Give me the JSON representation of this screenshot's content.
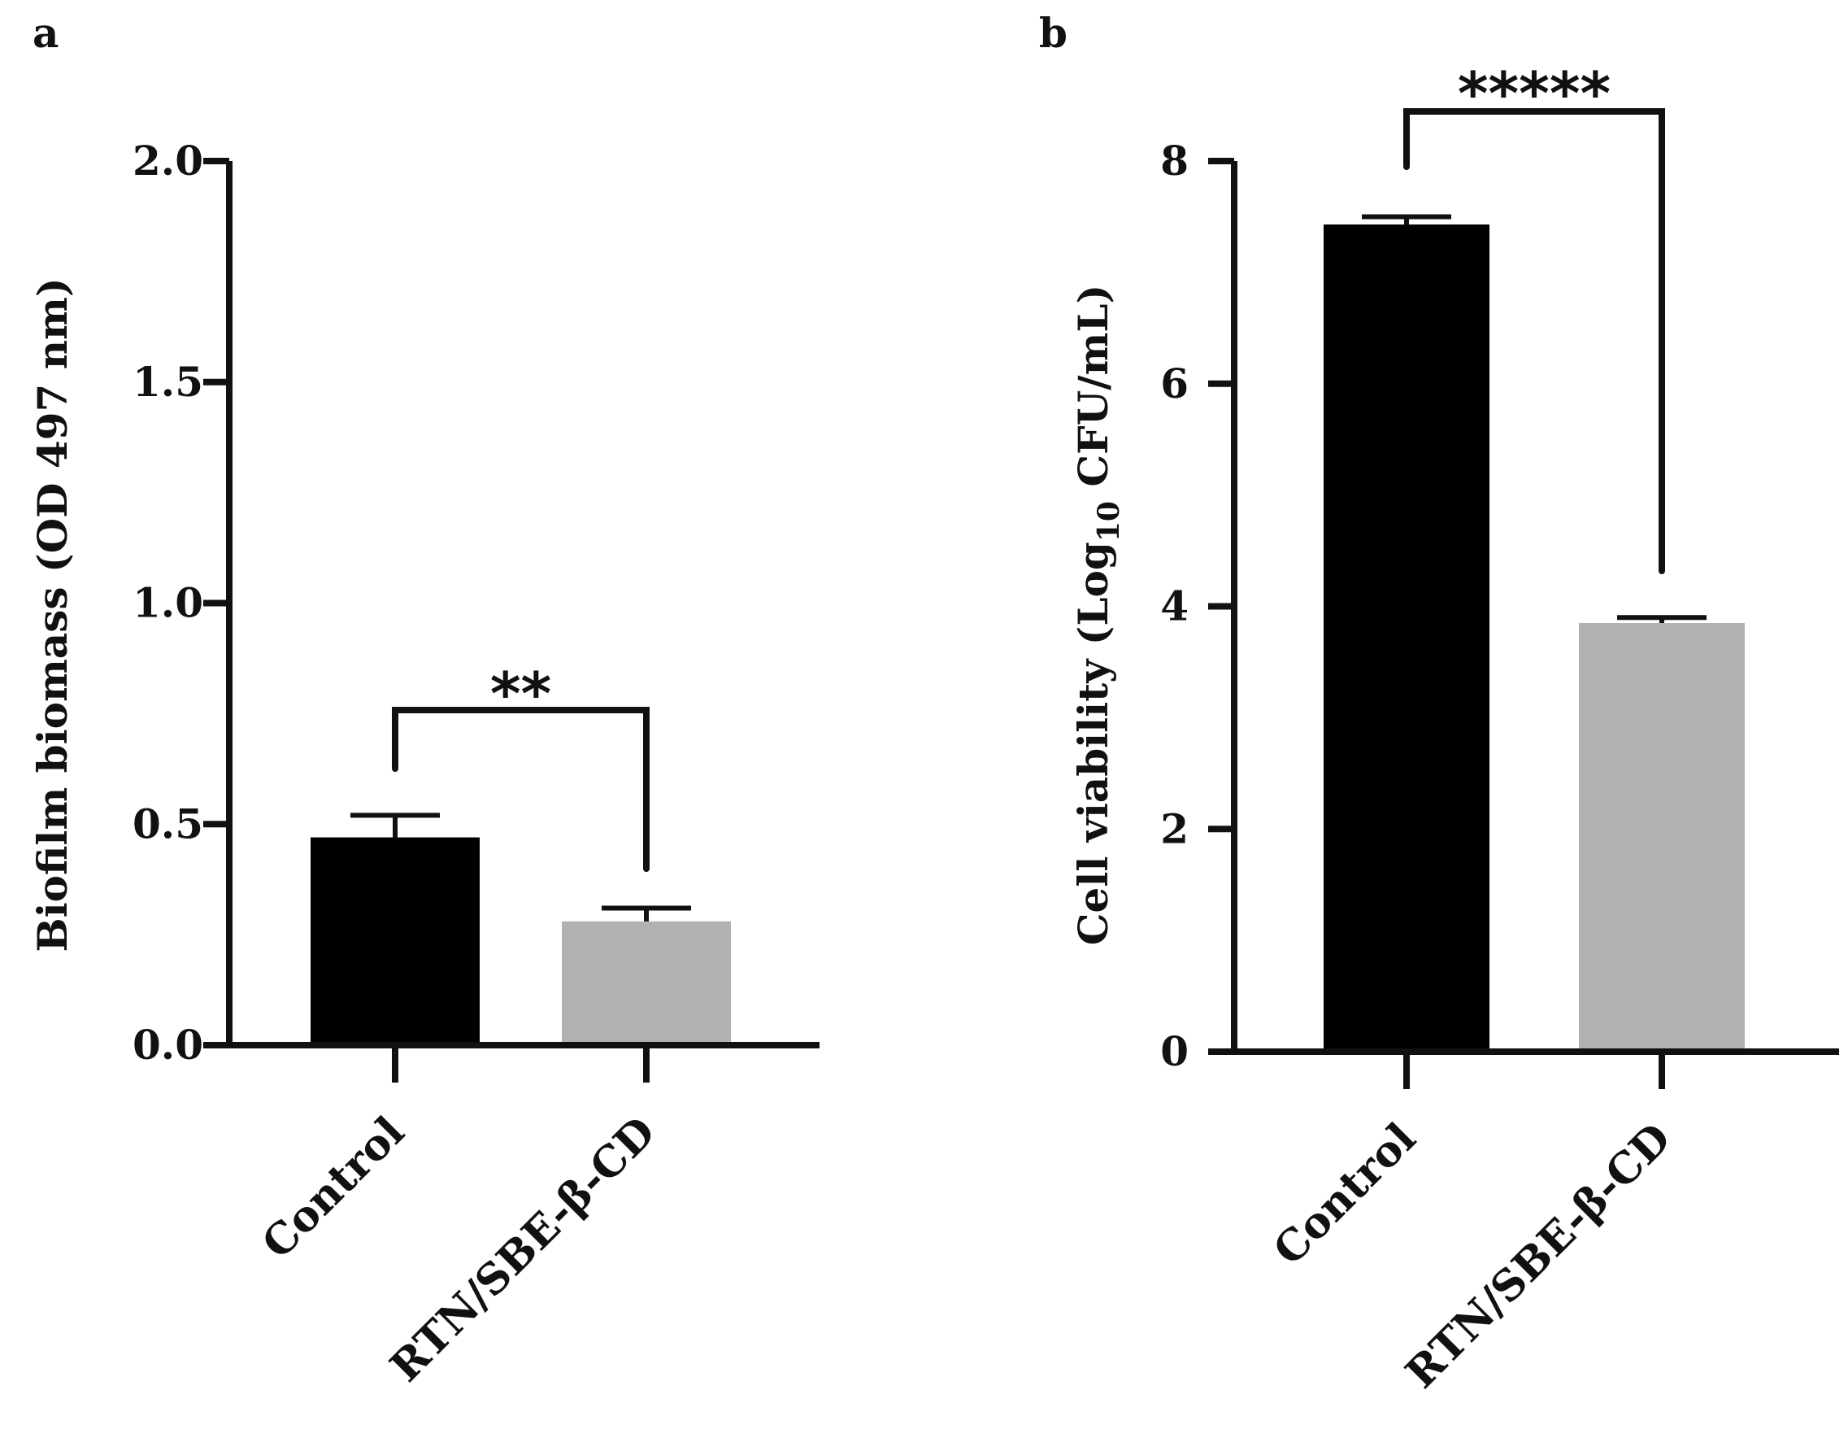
{
  "chart_data": [
    {
      "type": "bar",
      "panel": "a",
      "categories": [
        "Control",
        "RTN/SBE-β-CD"
      ],
      "values": [
        0.47,
        0.28
      ],
      "errors": [
        0.05,
        0.03
      ],
      "colors": [
        "#000000",
        "#b1b1b3"
      ],
      "ylabel": "Biofilm biomass (OD 497 nm)",
      "ylim": [
        0,
        2.0
      ],
      "yticks": [
        0.0,
        0.5,
        1.0,
        1.5,
        2.0
      ],
      "ytick_labels": [
        "0.0",
        "0.5",
        "1.0",
        "1.5",
        "2.0"
      ],
      "significance": "**",
      "xlabel": ""
    },
    {
      "type": "bar",
      "panel": "b",
      "categories": [
        "Control",
        "RTN/SBE-β-CD"
      ],
      "values": [
        7.43,
        3.85
      ],
      "errors": [
        0.07,
        0.05
      ],
      "colors": [
        "#000000",
        "#b1b1b3"
      ],
      "ylabel": "Cell viability (Log",
      "ylabel_subscript": "10",
      "ylabel_suffix": " CFU/mL)",
      "ylim": [
        0,
        8
      ],
      "yticks": [
        0,
        2,
        4,
        6,
        8
      ],
      "ytick_labels": [
        "0",
        "2",
        "4",
        "6",
        "8"
      ],
      "significance": "*****",
      "xlabel": ""
    }
  ]
}
